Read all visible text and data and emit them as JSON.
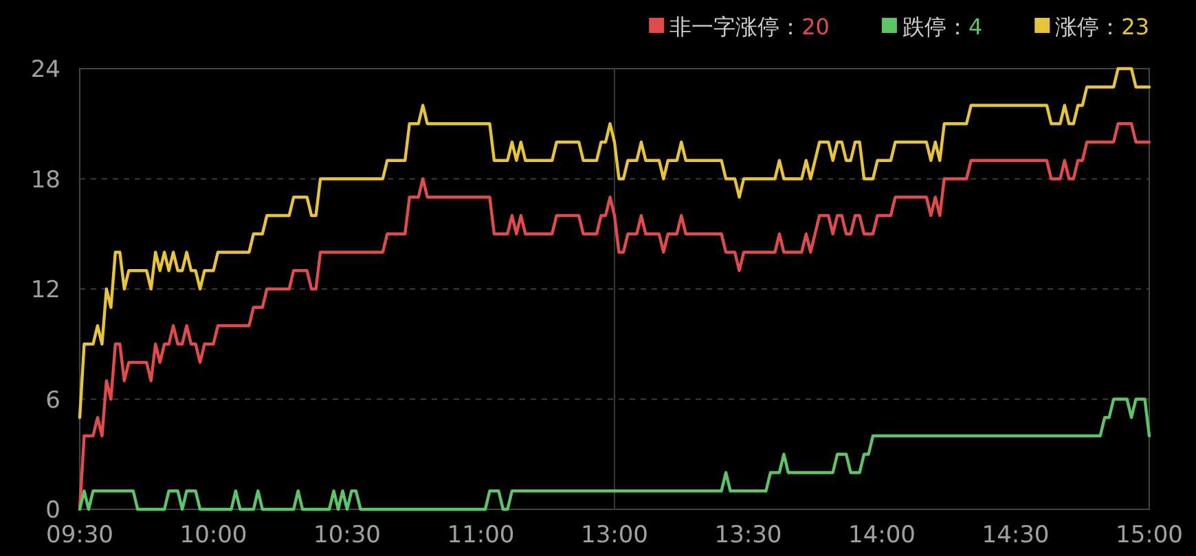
{
  "chart_data": {
    "type": "line",
    "ylim": [
      0,
      24
    ],
    "yticks": [
      0,
      6,
      12,
      18,
      24
    ],
    "grid": "y",
    "legend": "top right",
    "line_style": "solid",
    "categories": [
      "09:30",
      null,
      null,
      null,
      null,
      null,
      null,
      null,
      null,
      null,
      null,
      null,
      null,
      null,
      null,
      null,
      null,
      null,
      null,
      null,
      null,
      null,
      null,
      null,
      null,
      null,
      null,
      null,
      null,
      null,
      "10:00",
      null,
      null,
      null,
      null,
      null,
      null,
      null,
      null,
      null,
      null,
      null,
      null,
      null,
      null,
      null,
      null,
      null,
      null,
      null,
      null,
      null,
      null,
      null,
      null,
      null,
      null,
      null,
      null,
      null,
      "10:30",
      null,
      null,
      null,
      null,
      null,
      null,
      null,
      null,
      null,
      null,
      null,
      null,
      null,
      null,
      null,
      null,
      null,
      null,
      null,
      null,
      null,
      null,
      null,
      null,
      null,
      null,
      null,
      null,
      null,
      "11:00",
      null,
      null,
      null,
      null,
      null,
      null,
      null,
      null,
      null,
      null,
      null,
      null,
      null,
      null,
      null,
      null,
      null,
      null,
      null,
      null,
      null,
      null,
      null,
      null,
      null,
      null,
      null,
      null,
      null,
      "13:00",
      null,
      null,
      null,
      null,
      null,
      null,
      null,
      null,
      null,
      null,
      null,
      null,
      null,
      null,
      null,
      null,
      null,
      null,
      null,
      null,
      null,
      null,
      null,
      null,
      null,
      null,
      null,
      null,
      null,
      "13:30",
      null,
      null,
      null,
      null,
      null,
      null,
      null,
      null,
      null,
      null,
      null,
      null,
      null,
      null,
      null,
      null,
      null,
      null,
      null,
      null,
      null,
      null,
      null,
      null,
      null,
      null,
      null,
      null,
      null,
      "14:00",
      null,
      null,
      null,
      null,
      null,
      null,
      null,
      null,
      null,
      null,
      null,
      null,
      null,
      null,
      null,
      null,
      null,
      null,
      null,
      null,
      null,
      null,
      null,
      null,
      null,
      null,
      null,
      null,
      null,
      "14:30",
      null,
      null,
      null,
      null,
      null,
      null,
      null,
      null,
      null,
      null,
      null,
      null,
      null,
      null,
      null,
      null,
      null,
      null,
      null,
      null,
      null,
      null,
      null,
      null,
      null,
      null,
      null,
      null,
      null,
      "15:00"
    ],
    "ref_lines": [
      {
        "axis": "x",
        "value": "13:00",
        "color": "#3a3a3a"
      }
    ],
    "series": [
      {
        "name": "非一字涨停：20",
        "color": "#e04c4c",
        "values": [
          0,
          4,
          4,
          4,
          5,
          4,
          7,
          6,
          9,
          9,
          7,
          8,
          8,
          8,
          8,
          8,
          7,
          9,
          8,
          9,
          9,
          10,
          9,
          9,
          10,
          9,
          9,
          8,
          9,
          9,
          9,
          10,
          10,
          10,
          10,
          10,
          10,
          10,
          10,
          11,
          11,
          11,
          12,
          12,
          12,
          12,
          12,
          12,
          13,
          13,
          13,
          13,
          12,
          12,
          14,
          14,
          14,
          14,
          14,
          14,
          14,
          14,
          14,
          14,
          14,
          14,
          14,
          14,
          14,
          15,
          15,
          15,
          15,
          15,
          17,
          17,
          17,
          18,
          17,
          17,
          17,
          17,
          17,
          17,
          17,
          17,
          17,
          17,
          17,
          17,
          17,
          17,
          17,
          15,
          15,
          15,
          15,
          16,
          15,
          16,
          15,
          15,
          15,
          15,
          15,
          15,
          15,
          16,
          16,
          16,
          16,
          16,
          16,
          15,
          15,
          15,
          15,
          16,
          16,
          17,
          16,
          14,
          14,
          15,
          15,
          15,
          16,
          15,
          15,
          15,
          15,
          14,
          15,
          15,
          15,
          16,
          15,
          15,
          15,
          15,
          15,
          15,
          15,
          15,
          15,
          14,
          14,
          14,
          13,
          14,
          14,
          14,
          14,
          14,
          14,
          14,
          14,
          15,
          14,
          14,
          14,
          14,
          14,
          15,
          14,
          15,
          16,
          16,
          16,
          15,
          16,
          16,
          15,
          15,
          16,
          16,
          15,
          15,
          15,
          16,
          16,
          16,
          16,
          17,
          17,
          17,
          17,
          17,
          17,
          17,
          17,
          16,
          17,
          16,
          18,
          18,
          18,
          18,
          18,
          18,
          19,
          19,
          19,
          19,
          19,
          19,
          19,
          19,
          19,
          19,
          19,
          19,
          19,
          19,
          19,
          19,
          19,
          19,
          18,
          18,
          18,
          19,
          18,
          18,
          19,
          19,
          20,
          20,
          20,
          20,
          20,
          20,
          20,
          21,
          21,
          21,
          21,
          20,
          20,
          20,
          20
        ]
      },
      {
        "name": "跌停：4",
        "color": "#5ec46a",
        "values": [
          0,
          1,
          0,
          1,
          1,
          1,
          1,
          1,
          1,
          1,
          1,
          1,
          1,
          0,
          0,
          0,
          0,
          0,
          0,
          0,
          1,
          1,
          1,
          0,
          1,
          1,
          1,
          0,
          0,
          0,
          0,
          0,
          0,
          0,
          0,
          1,
          0,
          0,
          0,
          0,
          1,
          0,
          0,
          0,
          0,
          0,
          0,
          0,
          0,
          1,
          0,
          0,
          0,
          0,
          0,
          0,
          0,
          1,
          0,
          1,
          0,
          1,
          1,
          0,
          0,
          0,
          0,
          0,
          0,
          0,
          0,
          0,
          0,
          0,
          0,
          0,
          0,
          0,
          0,
          0,
          0,
          0,
          0,
          0,
          0,
          0,
          0,
          0,
          0,
          0,
          0,
          0,
          1,
          1,
          1,
          0,
          0,
          1,
          1,
          1,
          1,
          1,
          1,
          1,
          1,
          1,
          1,
          1,
          1,
          1,
          1,
          1,
          1,
          1,
          1,
          1,
          1,
          1,
          1,
          1,
          1,
          1,
          1,
          1,
          1,
          1,
          1,
          1,
          1,
          1,
          1,
          1,
          1,
          1,
          1,
          1,
          1,
          1,
          1,
          1,
          1,
          1,
          1,
          1,
          1,
          2,
          1,
          1,
          1,
          1,
          1,
          1,
          1,
          1,
          1,
          2,
          2,
          2,
          3,
          2,
          2,
          2,
          2,
          2,
          2,
          2,
          2,
          2,
          2,
          2,
          3,
          3,
          3,
          2,
          2,
          2,
          3,
          3,
          4,
          4,
          4,
          4,
          4,
          4,
          4,
          4,
          4,
          4,
          4,
          4,
          4,
          4,
          4,
          4,
          4,
          4,
          4,
          4,
          4,
          4,
          4,
          4,
          4,
          4,
          4,
          4,
          4,
          4,
          4,
          4,
          4,
          4,
          4,
          4,
          4,
          4,
          4,
          4,
          4,
          4,
          4,
          4,
          4,
          4,
          4,
          4,
          4,
          4,
          4,
          4,
          5,
          5,
          6,
          6,
          6,
          6,
          5,
          6,
          6,
          6,
          4
        ]
      },
      {
        "name": "涨停：23",
        "color": "#e8c33c",
        "values": [
          5,
          9,
          9,
          9,
          10,
          9,
          12,
          11,
          14,
          14,
          12,
          13,
          13,
          13,
          13,
          13,
          12,
          14,
          13,
          14,
          13,
          14,
          13,
          13,
          14,
          13,
          13,
          12,
          13,
          13,
          13,
          14,
          14,
          14,
          14,
          14,
          14,
          14,
          14,
          15,
          15,
          15,
          16,
          16,
          16,
          16,
          16,
          16,
          17,
          17,
          17,
          17,
          16,
          16,
          18,
          18,
          18,
          18,
          18,
          18,
          18,
          18,
          18,
          18,
          18,
          18,
          18,
          18,
          18,
          19,
          19,
          19,
          19,
          19,
          21,
          21,
          21,
          22,
          21,
          21,
          21,
          21,
          21,
          21,
          21,
          21,
          21,
          21,
          21,
          21,
          21,
          21,
          21,
          19,
          19,
          19,
          19,
          20,
          19,
          20,
          19,
          19,
          19,
          19,
          19,
          19,
          19,
          20,
          20,
          20,
          20,
          20,
          20,
          19,
          19,
          19,
          19,
          20,
          20,
          21,
          20,
          18,
          18,
          19,
          19,
          19,
          20,
          19,
          19,
          19,
          19,
          18,
          19,
          19,
          19,
          20,
          19,
          19,
          19,
          19,
          19,
          19,
          19,
          19,
          19,
          18,
          18,
          18,
          17,
          18,
          18,
          18,
          18,
          18,
          18,
          18,
          18,
          19,
          18,
          18,
          18,
          18,
          18,
          19,
          18,
          19,
          20,
          20,
          20,
          19,
          20,
          20,
          19,
          19,
          20,
          20,
          18,
          18,
          18,
          19,
          19,
          19,
          19,
          20,
          20,
          20,
          20,
          20,
          20,
          20,
          20,
          19,
          20,
          19,
          21,
          21,
          21,
          21,
          21,
          21,
          22,
          22,
          22,
          22,
          22,
          22,
          22,
          22,
          22,
          22,
          22,
          22,
          22,
          22,
          22,
          22,
          22,
          22,
          21,
          21,
          21,
          22,
          21,
          21,
          22,
          22,
          23,
          23,
          23,
          23,
          23,
          23,
          23,
          24,
          24,
          24,
          24,
          23,
          23,
          23,
          23
        ]
      }
    ]
  }
}
